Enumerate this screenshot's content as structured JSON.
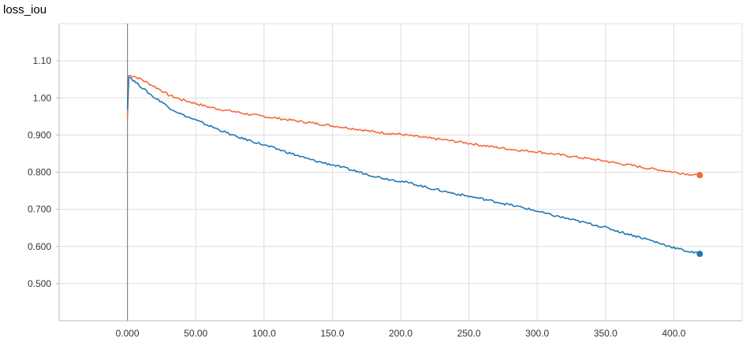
{
  "chart_data": {
    "type": "line",
    "title": "loss_iou",
    "xlabel": "",
    "ylabel": "",
    "xlim": [
      -50,
      450
    ],
    "ylim": [
      0.4,
      1.2
    ],
    "x_ticks": [
      "0.000",
      "50.00",
      "100.0",
      "150.0",
      "200.0",
      "250.0",
      "300.0",
      "350.0",
      "400.0"
    ],
    "y_ticks": [
      "0.500",
      "0.600",
      "0.700",
      "0.800",
      "0.900",
      "1.00",
      "1.10"
    ],
    "grid": true,
    "series": [
      {
        "color": "#f4693c",
        "x": [
          0,
          1,
          2,
          5,
          10,
          15,
          20,
          25,
          30,
          40,
          50,
          60,
          70,
          80,
          90,
          100,
          110,
          120,
          130,
          140,
          150,
          160,
          170,
          180,
          190,
          200,
          210,
          220,
          230,
          240,
          250,
          260,
          270,
          280,
          290,
          300,
          310,
          320,
          330,
          340,
          350,
          360,
          370,
          380,
          390,
          400,
          410,
          419
        ],
        "y": [
          0.945,
          1.06,
          1.06,
          1.058,
          1.05,
          1.04,
          1.03,
          1.02,
          1.008,
          0.995,
          0.985,
          0.975,
          0.968,
          0.962,
          0.955,
          0.95,
          0.945,
          0.94,
          0.935,
          0.93,
          0.925,
          0.92,
          0.915,
          0.909,
          0.905,
          0.902,
          0.897,
          0.892,
          0.888,
          0.883,
          0.878,
          0.872,
          0.867,
          0.862,
          0.858,
          0.855,
          0.85,
          0.845,
          0.84,
          0.835,
          0.83,
          0.823,
          0.818,
          0.811,
          0.806,
          0.8,
          0.795,
          0.792
        ]
      },
      {
        "color": "#1f77b4",
        "x": [
          0,
          1,
          2,
          5,
          10,
          15,
          20,
          25,
          30,
          40,
          50,
          60,
          70,
          80,
          90,
          100,
          110,
          120,
          130,
          140,
          150,
          160,
          170,
          180,
          190,
          200,
          210,
          220,
          230,
          240,
          250,
          260,
          270,
          280,
          290,
          300,
          310,
          320,
          330,
          340,
          350,
          360,
          370,
          380,
          390,
          400,
          410,
          419
        ],
        "y": [
          0.968,
          1.058,
          1.055,
          1.045,
          1.03,
          1.015,
          1.0,
          0.99,
          0.975,
          0.955,
          0.94,
          0.925,
          0.91,
          0.895,
          0.885,
          0.873,
          0.862,
          0.85,
          0.838,
          0.828,
          0.82,
          0.81,
          0.8,
          0.79,
          0.782,
          0.776,
          0.768,
          0.758,
          0.75,
          0.742,
          0.735,
          0.728,
          0.72,
          0.712,
          0.704,
          0.695,
          0.685,
          0.677,
          0.668,
          0.66,
          0.651,
          0.64,
          0.63,
          0.62,
          0.608,
          0.597,
          0.587,
          0.58
        ]
      }
    ]
  }
}
